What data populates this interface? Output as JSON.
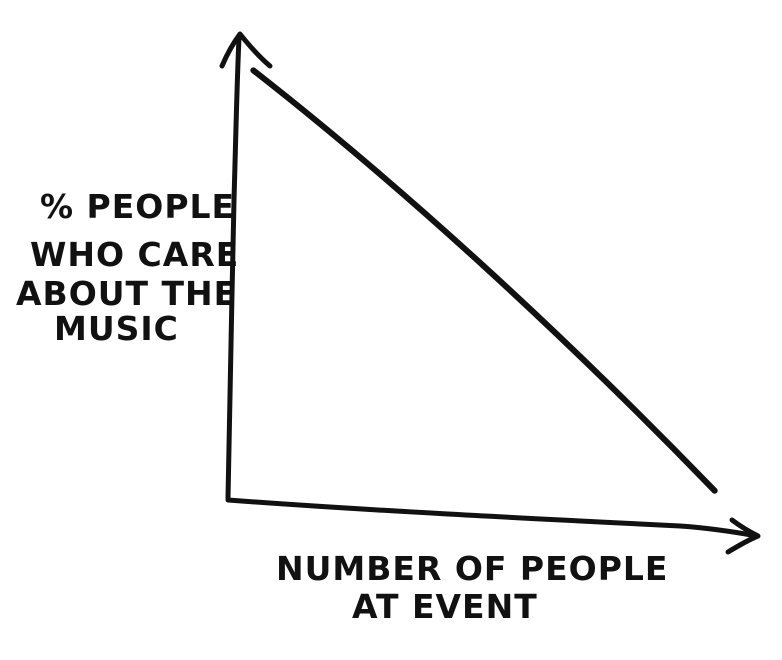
{
  "chart_data": {
    "type": "line",
    "ylabel": [
      "% PEOPLE",
      "WHO CARE",
      "ABOUT THE",
      "MUSIC"
    ],
    "xlabel": [
      "NUMBER OF PEOPLE",
      "AT EVENT"
    ],
    "grid": false,
    "legend": "none",
    "series": [
      {
        "x": [
          0.05,
          0.96
        ],
        "y": [
          0.93,
          0.02
        ]
      }
    ],
    "xlim": [
      0,
      1
    ],
    "ylim": [
      0,
      1
    ]
  }
}
